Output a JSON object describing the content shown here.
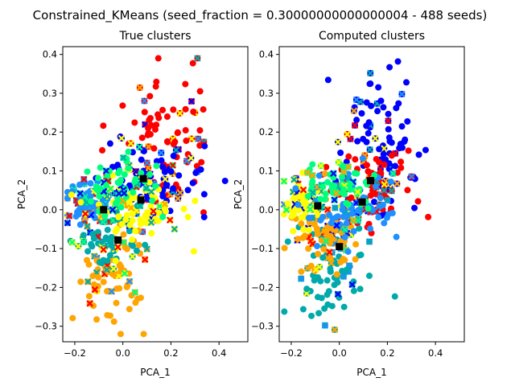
{
  "figure": {
    "suptitle": "Constrained_KMeans (seed_fraction = 0.30000000000000004 - 488 seeds)"
  },
  "chart_data": [
    {
      "type": "scatter",
      "title": "True clusters",
      "xlabel": "PCA_1",
      "ylabel": "PCA_2",
      "xlim": [
        -0.25,
        0.52
      ],
      "ylim": [
        -0.34,
        0.42
      ],
      "xticks": [
        -0.2,
        0.0,
        0.2,
        0.4
      ],
      "xtick_labels": [
        "−0.2",
        "0.0",
        "0.2",
        "0.4"
      ],
      "yticks": [
        -0.3,
        -0.2,
        -0.1,
        0.0,
        0.1,
        0.2,
        0.3,
        0.4
      ],
      "ytick_labels": [
        "−0.3",
        "−0.2",
        "−0.1",
        "0.0",
        "0.1",
        "0.2",
        "0.3",
        "0.4"
      ],
      "grid": false,
      "legend": false,
      "series_colors": [
        "#ff0000",
        "#0000ff",
        "#ffa500",
        "#00aaaa",
        "#1e90ff",
        "#ffff00",
        "#00ff7f"
      ],
      "centers": [
        [
          -0.08,
          0.0
        ],
        [
          -0.02,
          -0.078
        ],
        [
          0.075,
          0.025
        ],
        [
          0.085,
          0.08
        ]
      ],
      "center_color": "#000000"
    },
    {
      "type": "scatter",
      "title": "Computed clusters",
      "xlabel": "PCA_1",
      "ylabel": "PCA_2",
      "xlim": [
        -0.25,
        0.52
      ],
      "ylim": [
        -0.34,
        0.42
      ],
      "xticks": [
        -0.2,
        0.0,
        0.2,
        0.4
      ],
      "xtick_labels": [
        "−0.2",
        "0.0",
        "0.2",
        "0.4"
      ],
      "yticks": [
        -0.3,
        -0.2,
        -0.1,
        0.0,
        0.1,
        0.2,
        0.3,
        0.4
      ],
      "ytick_labels": [
        "−0.3",
        "−0.2",
        "−0.1",
        "0.0",
        "0.1",
        "0.2",
        "0.3",
        "0.4"
      ],
      "grid": false,
      "legend": false,
      "series_colors": [
        "#0000ff",
        "#ff0000",
        "#00aaaa",
        "#ffa500",
        "#ffff00",
        "#1e90ff",
        "#00ff7f"
      ],
      "centers": [
        [
          -0.09,
          0.01
        ],
        [
          0.0,
          -0.095
        ],
        [
          0.095,
          0.02
        ],
        [
          0.13,
          0.075
        ]
      ],
      "center_color": "#000000"
    }
  ]
}
